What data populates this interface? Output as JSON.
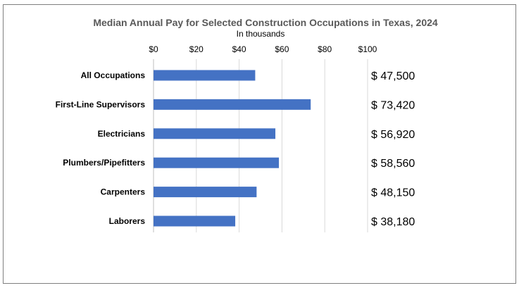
{
  "chart_data": {
    "type": "bar",
    "orientation": "horizontal",
    "title": "Median Annual Pay for Selected Construction Occupations in Texas, 2024",
    "subtitle": "In thousands",
    "categories": [
      "All Occupations",
      "First-Line Supervisors",
      "Electricians",
      "Plumbers/Pipefitters",
      "Carpenters",
      "Laborers"
    ],
    "values": [
      47.5,
      73.42,
      56.92,
      58.56,
      48.15,
      38.18
    ],
    "value_labels": [
      "$ 47,500",
      "$ 73,420",
      "$ 56,920",
      "$ 58,560",
      "$ 48,150",
      "$ 38,180"
    ],
    "xlim": [
      0,
      100
    ],
    "x_ticks": [
      0,
      20,
      40,
      60,
      80,
      100
    ],
    "x_tick_labels": [
      "$0",
      "$20",
      "$40",
      "$60",
      "$80",
      "$100"
    ],
    "axis_position": "top",
    "grid": true,
    "bar_color": "#4472c4",
    "grid_color": "#d9d9d9"
  }
}
